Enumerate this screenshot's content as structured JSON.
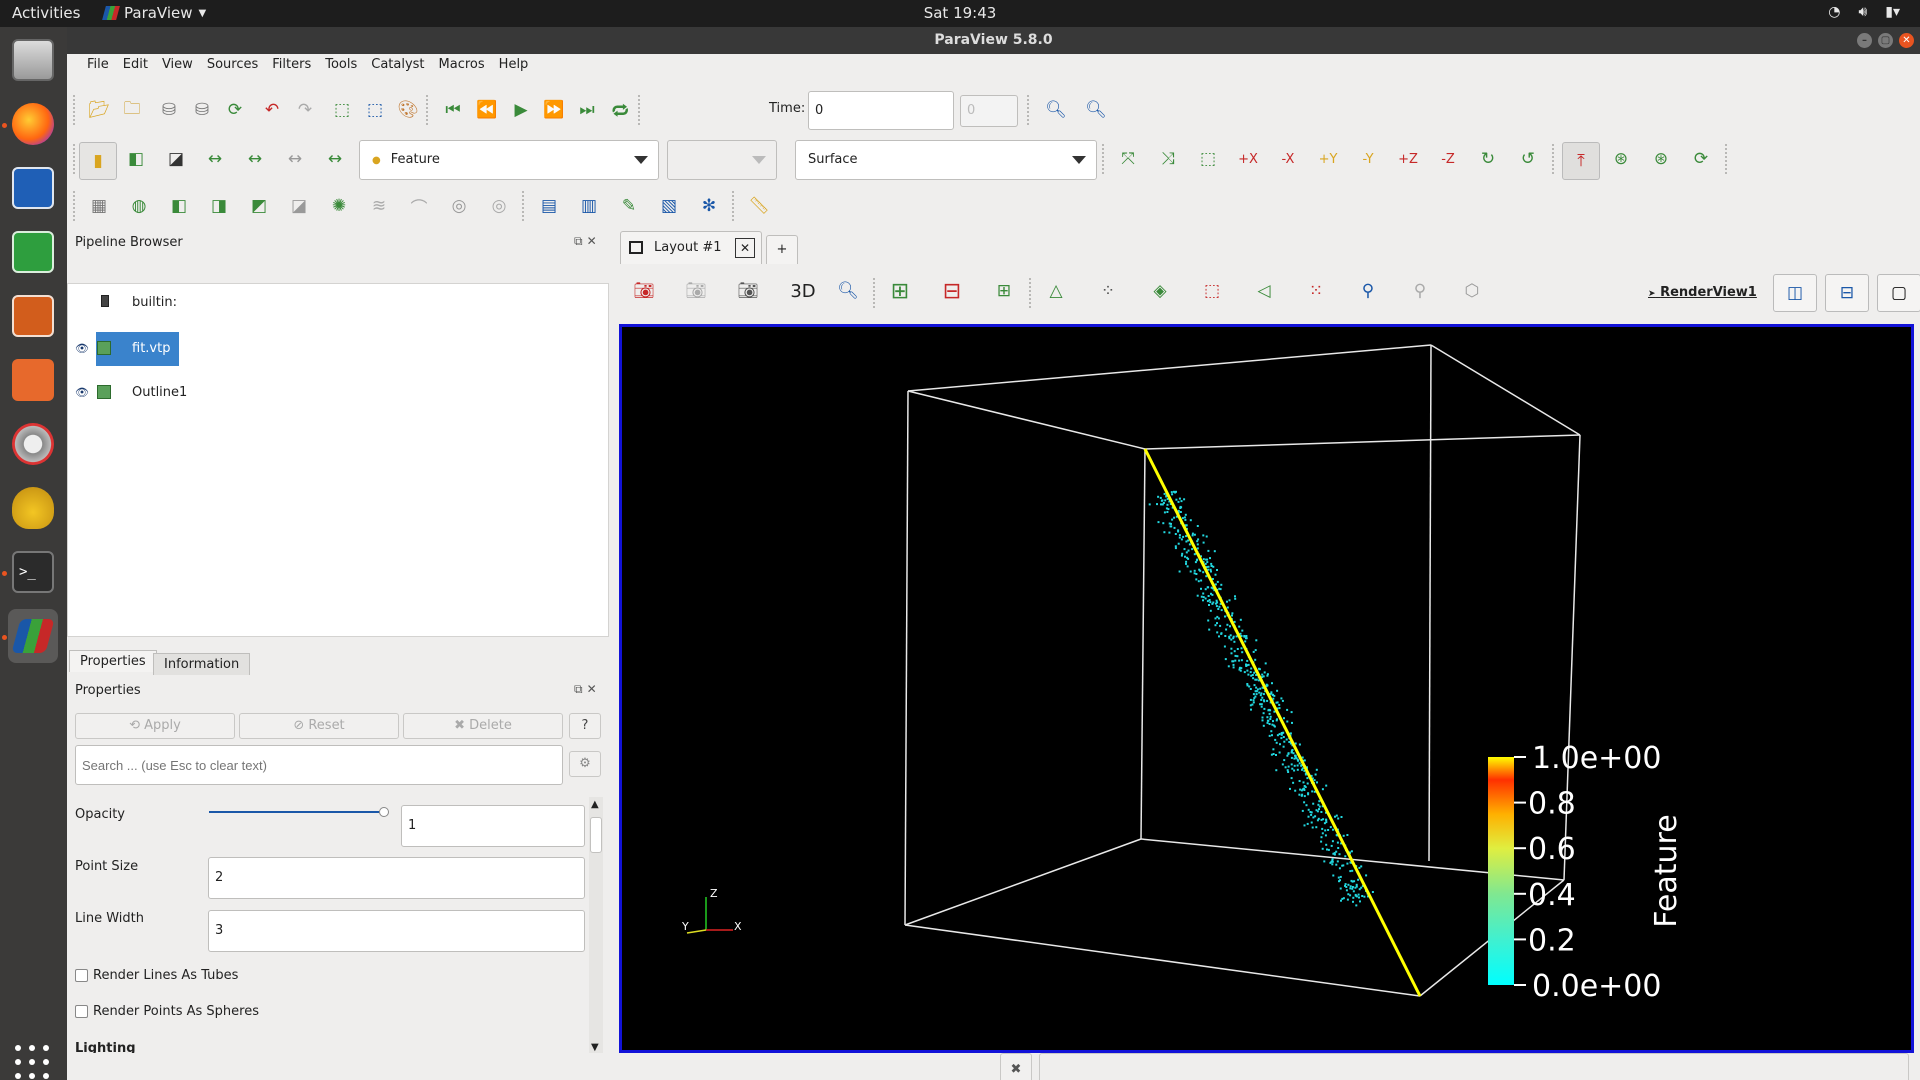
{
  "topbar": {
    "activities": "Activities",
    "app_name": "ParaView",
    "clock": "Sat 19:43"
  },
  "window": {
    "title": "ParaView 5.8.0"
  },
  "menu": {
    "items": [
      "File",
      "Edit",
      "View",
      "Sources",
      "Filters",
      "Tools",
      "Catalyst",
      "Macros",
      "Help"
    ]
  },
  "toolbar": {
    "time_label": "Time:",
    "time_value": "0",
    "timestep_value": "0",
    "color_by": "Feature",
    "representation": "Surface",
    "view_3d": "3D"
  },
  "pipeline": {
    "title": "Pipeline Browser",
    "items": [
      {
        "label": "builtin:"
      },
      {
        "label": "fit.vtp"
      },
      {
        "label": "Outline1"
      }
    ]
  },
  "tabs": {
    "properties": "Properties",
    "information": "Information"
  },
  "properties": {
    "title": "Properties",
    "apply": "Apply",
    "reset": "Reset",
    "delete": "Delete",
    "help": "?",
    "search_placeholder": "Search ... (use Esc to clear text)",
    "opacity_label": "Opacity",
    "opacity_value": "1",
    "opacity_level": 1.0,
    "point_size_label": "Point Size",
    "point_size_value": "2",
    "line_width_label": "Line Width",
    "line_width_value": "3",
    "tubes_label": "Render Lines As Tubes",
    "spheres_label": "Render Points As Spheres",
    "lighting_label": "Lighting"
  },
  "layout": {
    "tab_label": "Layout #1",
    "add_tab": "+",
    "render_view_label": "RenderView1"
  },
  "colorbar": {
    "title": "Feature",
    "ticks": [
      "1.0e+00",
      "0.8",
      "0.6",
      "0.4",
      "0.2",
      "0.0e+00"
    ]
  },
  "axes": {
    "z": "Z",
    "y": "Y",
    "x": "X"
  },
  "colors": {
    "accent": "#3a83cc",
    "render_border": "#1212d8",
    "fit_line": "#ffff00",
    "points": "#22d8e0"
  }
}
